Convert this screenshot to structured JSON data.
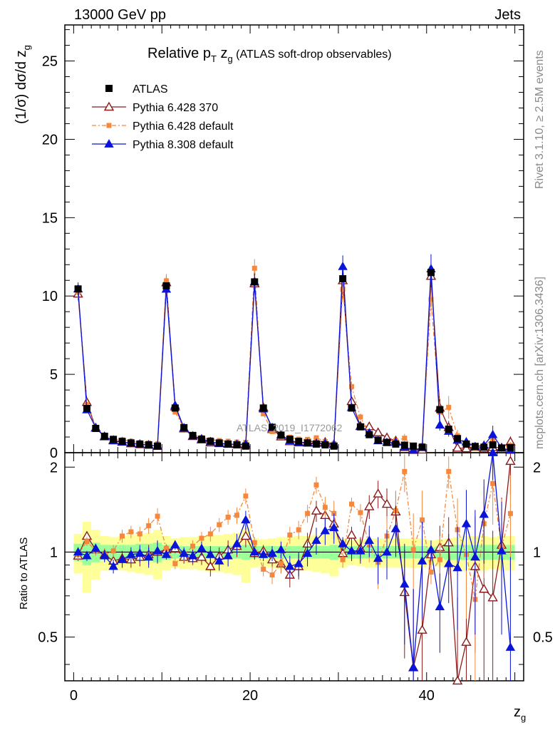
{
  "header": {
    "left": "13000 GeV pp",
    "right": "Jets"
  },
  "side": {
    "rivet": "Rivet 3.1.10, ≥ 2.5M events",
    "mcplots": "mcplots.cern.ch [arXiv:1306.3436]"
  },
  "watermark": "ATLAS_2019_I1772062",
  "colors": {
    "atlas": "#000000",
    "p370": "#8b1a1a",
    "p6def": "#f5883c",
    "p8": "#0a14d8",
    "yellow": "#ffff99",
    "green": "#99ff99"
  },
  "chart_data": {
    "type": "scatter",
    "title_parts": {
      "pre": "Relative p",
      "sub1": "T",
      "mid": " z",
      "sub2": "g",
      "post": " (ATLAS soft-drop observables)"
    },
    "ylabel": "(1/σ) dσ/d z",
    "ylabel_sub": "g",
    "xlabel": "z",
    "xlabel_sub": "g",
    "ratio_ylabel": "Ratio to ATLAS",
    "xlim": [
      -1,
      51
    ],
    "ylim": [
      0,
      27.3
    ],
    "ratio_ylim": [
      0.35,
      2.25
    ],
    "x_ticks": [
      0,
      20,
      40
    ],
    "y_ticks": [
      0,
      5,
      10,
      15,
      20,
      25
    ],
    "ratio_ticks": [
      0.5,
      1,
      2
    ],
    "legend": [
      {
        "label": "ATLAS",
        "key": "atlas"
      },
      {
        "label": "Pythia 6.428 370",
        "key": "p370"
      },
      {
        "label": "Pythia 6.428 default",
        "key": "p6def"
      },
      {
        "label": "Pythia 8.308 default",
        "key": "p8"
      }
    ],
    "x": [
      0.5,
      1.5,
      2.5,
      3.5,
      4.5,
      5.5,
      6.5,
      7.5,
      8.5,
      9.5,
      10.5,
      11.5,
      12.5,
      13.5,
      14.5,
      15.5,
      16.5,
      17.5,
      18.5,
      19.5,
      20.5,
      21.5,
      22.5,
      23.5,
      24.5,
      25.5,
      26.5,
      27.5,
      28.5,
      29.5,
      30.5,
      31.5,
      32.5,
      33.5,
      34.5,
      35.5,
      36.5,
      37.5,
      38.5,
      39.5,
      40.5,
      41.5,
      42.5,
      43.5,
      44.5,
      45.5,
      46.5,
      47.5,
      48.5,
      49.5
    ],
    "atlas": [
      10.45,
      2.82,
      1.55,
      1.05,
      0.85,
      0.72,
      0.62,
      0.55,
      0.5,
      0.42,
      10.65,
      2.85,
      1.6,
      1.1,
      0.86,
      0.72,
      0.62,
      0.55,
      0.5,
      0.42,
      10.9,
      2.85,
      1.62,
      1.12,
      0.86,
      0.72,
      0.62,
      0.55,
      0.5,
      0.42,
      11.1,
      2.85,
      1.65,
      1.15,
      0.8,
      0.65,
      0.55,
      0.48,
      0.42,
      0.35,
      11.5,
      2.75,
      1.5,
      0.9,
      0.55,
      0.4,
      0.35,
      0.5,
      0.3,
      0.33
    ],
    "series": [
      {
        "key": "p370",
        "name": "Pythia 6.428 370",
        "ratio": [
          0.97,
          1.14,
          1.02,
          0.98,
          0.93,
          0.95,
          0.94,
          0.96,
          0.98,
          1.0,
          1.02,
          1.03,
          0.96,
          0.95,
          0.96,
          0.89,
          0.97,
          1.02,
          1.05,
          1.14,
          0.99,
          1.01,
          0.94,
          0.91,
          0.83,
          0.89,
          1.07,
          1.4,
          1.35,
          1.26,
          0.99,
          1.15,
          1.03,
          1.45,
          1.61,
          1.48,
          1.39,
          0.72,
          0.39,
          0.53,
          0.98,
          1.04,
          1.08,
          0.34,
          0.48,
          0.89,
          0.74,
          0.69,
          1.06,
          2.1
        ]
      },
      {
        "key": "p6def",
        "name": "Pythia 6.428 default",
        "ratio": [
          0.98,
          1.09,
          1.01,
          0.98,
          1.01,
          1.14,
          1.18,
          1.16,
          1.24,
          1.34,
          1.03,
          0.91,
          0.98,
          1.05,
          1.12,
          1.16,
          1.25,
          1.33,
          1.35,
          1.58,
          1.08,
          0.87,
          0.83,
          0.91,
          1.15,
          1.2,
          1.37,
          1.73,
          1.44,
          1.37,
          0.94,
          1.48,
          1.38,
          1.06,
          0.92,
          1.14,
          1.4,
          1.93,
          1.02,
          1.3,
          0.85,
          0.94,
          1.93,
          1.2,
          0.98,
          0.68,
          1.26,
          1.75,
          1.04,
          1.37
        ]
      },
      {
        "key": "p8",
        "name": "Pythia 8.308 default",
        "ratio": [
          1.0,
          0.97,
          1.03,
          0.97,
          0.89,
          0.94,
          0.98,
          0.99,
          0.96,
          1.01,
          0.98,
          1.06,
          0.99,
          0.97,
          1.03,
          0.98,
          0.93,
          0.97,
          1.07,
          1.3,
          1.0,
          0.98,
          0.99,
          1.02,
          0.89,
          0.91,
          0.99,
          1.1,
          1.19,
          1.22,
          1.07,
          1.01,
          1.01,
          1.1,
          0.95,
          1.0,
          1.21,
          0.77,
          0.39,
          0.93,
          1.02,
          0.64,
          0.91,
          0.88,
          1.26,
          0.96,
          1.36,
          2.3,
          1.01,
          0.46
        ]
      }
    ],
    "err": {
      "p370": [
        0.04,
        0.04,
        0.04,
        0.05,
        0.05,
        0.06,
        0.06,
        0.07,
        0.08,
        0.09,
        0.04,
        0.04,
        0.05,
        0.05,
        0.06,
        0.07,
        0.07,
        0.08,
        0.09,
        0.1,
        0.05,
        0.05,
        0.06,
        0.07,
        0.08,
        0.09,
        0.1,
        0.12,
        0.13,
        0.15,
        0.06,
        0.08,
        0.1,
        0.14,
        0.18,
        0.2,
        0.25,
        0.3,
        0.35,
        0.35,
        0.08,
        0.2,
        0.25,
        0.35,
        0.4,
        0.45,
        0.45,
        0.5,
        0.5,
        0.5
      ],
      "p6def": [
        0.04,
        0.04,
        0.04,
        0.05,
        0.05,
        0.06,
        0.06,
        0.07,
        0.08,
        0.09,
        0.04,
        0.04,
        0.05,
        0.05,
        0.06,
        0.07,
        0.07,
        0.08,
        0.09,
        0.1,
        0.05,
        0.05,
        0.06,
        0.07,
        0.08,
        0.09,
        0.1,
        0.12,
        0.13,
        0.15,
        0.06,
        0.08,
        0.1,
        0.14,
        0.18,
        0.2,
        0.25,
        0.3,
        0.35,
        0.35,
        0.08,
        0.2,
        0.25,
        0.35,
        0.4,
        0.45,
        0.45,
        0.5,
        0.5,
        0.5
      ],
      "p8": [
        0.04,
        0.04,
        0.04,
        0.05,
        0.05,
        0.06,
        0.06,
        0.07,
        0.08,
        0.09,
        0.04,
        0.04,
        0.05,
        0.05,
        0.06,
        0.07,
        0.07,
        0.08,
        0.09,
        0.1,
        0.05,
        0.05,
        0.06,
        0.07,
        0.08,
        0.09,
        0.1,
        0.12,
        0.13,
        0.15,
        0.06,
        0.08,
        0.1,
        0.14,
        0.18,
        0.2,
        0.25,
        0.3,
        0.35,
        0.35,
        0.08,
        0.2,
        0.25,
        0.35,
        0.4,
        0.45,
        0.45,
        0.5,
        0.5,
        0.5
      ]
    },
    "band_total": [
      0.16,
      0.28,
      0.2,
      0.14,
      0.13,
      0.14,
      0.15,
      0.16,
      0.17,
      0.2,
      0.14,
      0.12,
      0.13,
      0.13,
      0.14,
      0.15,
      0.15,
      0.16,
      0.17,
      0.22,
      0.12,
      0.11,
      0.12,
      0.13,
      0.13,
      0.14,
      0.14,
      0.15,
      0.16,
      0.18,
      0.12,
      0.1,
      0.11,
      0.12,
      0.12,
      0.12,
      0.12,
      0.12,
      0.12,
      0.12,
      0.1,
      0.11,
      0.12,
      0.13,
      0.14,
      0.14,
      0.14,
      0.13,
      0.14,
      0.14
    ],
    "band_stat": [
      0.07,
      0.1,
      0.08,
      0.06,
      0.06,
      0.06,
      0.06,
      0.07,
      0.07,
      0.08,
      0.06,
      0.05,
      0.05,
      0.05,
      0.05,
      0.05,
      0.05,
      0.05,
      0.05,
      0.06,
      0.05,
      0.05,
      0.05,
      0.05,
      0.05,
      0.05,
      0.05,
      0.05,
      0.05,
      0.06,
      0.05,
      0.05,
      0.05,
      0.05,
      0.05,
      0.05,
      0.05,
      0.05,
      0.05,
      0.05,
      0.04,
      0.05,
      0.06,
      0.06,
      0.06,
      0.06,
      0.06,
      0.06,
      0.06,
      0.06
    ]
  }
}
